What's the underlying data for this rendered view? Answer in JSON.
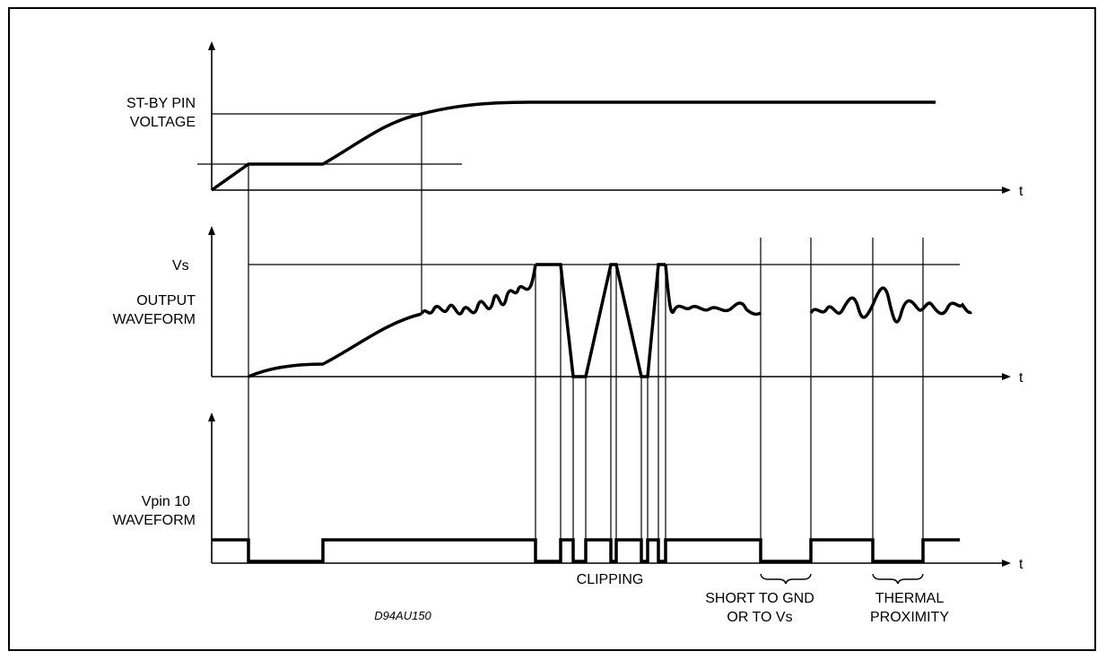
{
  "labels": {
    "standby_line1": "ST-BY PIN",
    "standby_line2": "VOLTAGE",
    "vs_level": "Vs",
    "output_line1": "OUTPUT",
    "output_line2": "WAVEFORM",
    "vpin_line1": "Vpin 10",
    "vpin_line2": "WAVEFORM",
    "t_axis_1": "t",
    "t_axis_2": "t",
    "t_axis_3": "t",
    "clipping": "CLIPPING",
    "short_line1": "SHORT TO GND",
    "short_line2": "OR TO Vs",
    "thermal_line1": "THERMAL",
    "thermal_line2": "PROXIMITY",
    "drawing_code": "D94AU150"
  },
  "colors": {
    "ink": "#000000",
    "background": "#ffffff"
  }
}
